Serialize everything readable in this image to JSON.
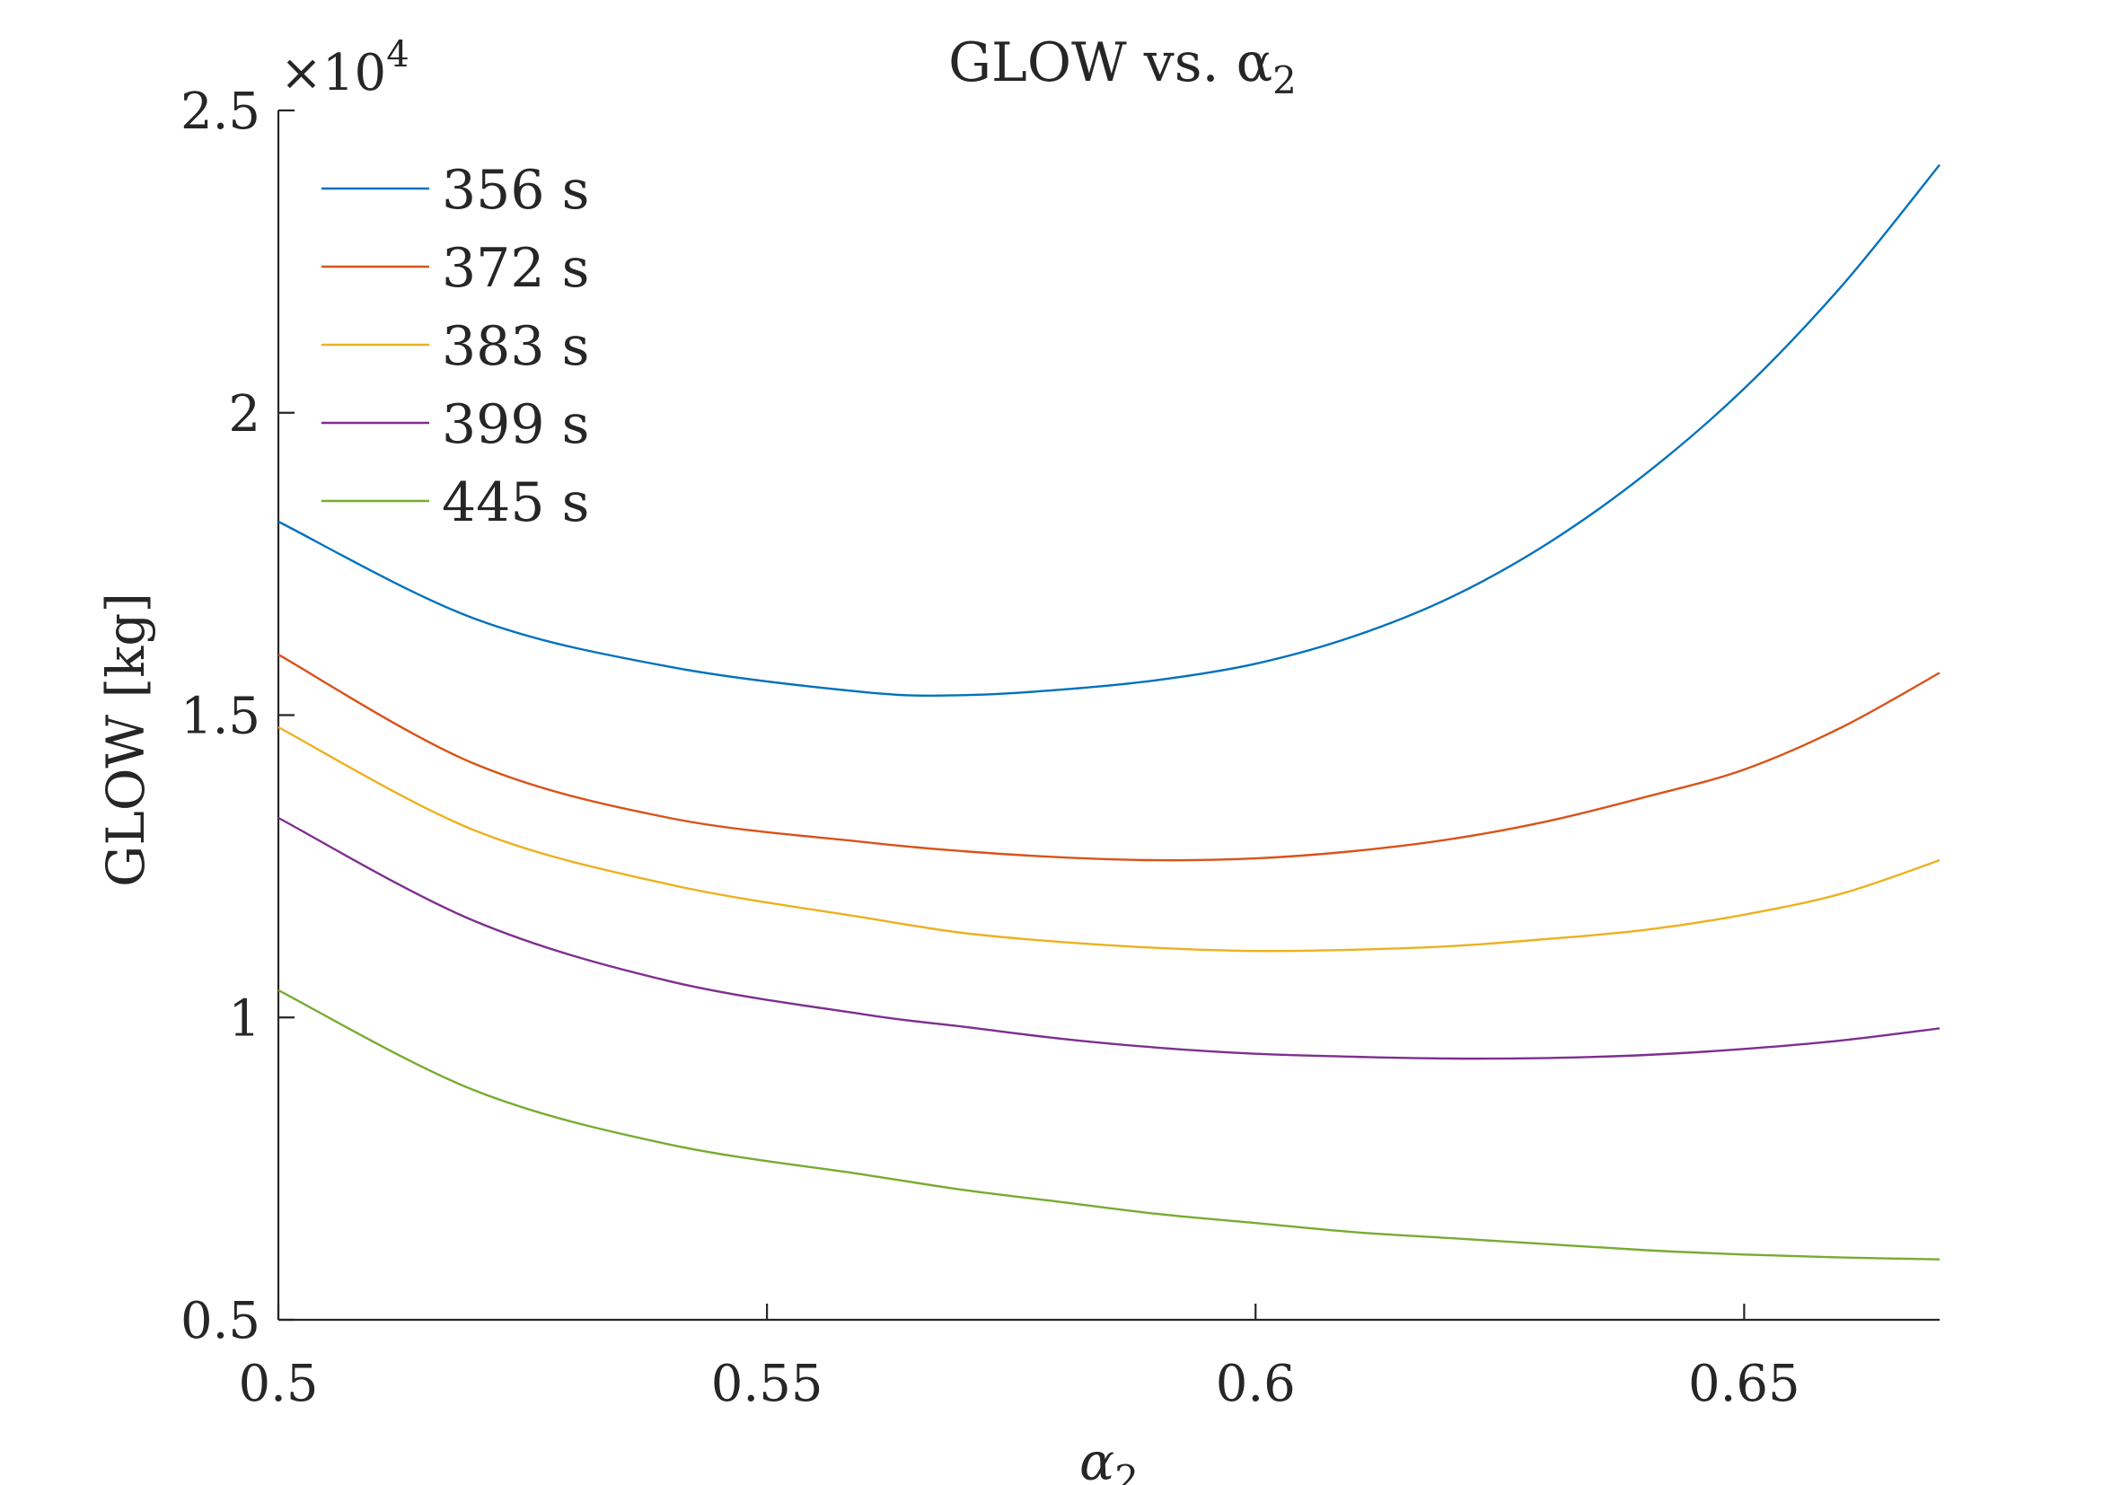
{
  "chart_data": {
    "type": "line",
    "title": "GLOW vs. α",
    "title_subscript": "2",
    "xlabel": "α",
    "xlabel_subscript": "2",
    "ylabel": "GLOW [kg]",
    "y_exponent_label": "×10",
    "y_exponent_power": "4",
    "xlim": [
      0.5,
      0.67
    ],
    "ylim": [
      5000,
      25000
    ],
    "x_ticks": [
      0.5,
      0.55,
      0.6,
      0.65
    ],
    "x_tick_labels": [
      "0.5",
      "0.55",
      "0.6",
      "0.65"
    ],
    "y_ticks": [
      5000,
      10000,
      15000,
      20000,
      25000
    ],
    "y_tick_labels": [
      "0.5",
      "1",
      "1.5",
      "2",
      "2.5"
    ],
    "grid": false,
    "legend_position": "top-left",
    "x": [
      0.5,
      0.52,
      0.54,
      0.56,
      0.57,
      0.58,
      0.59,
      0.6,
      0.61,
      0.62,
      0.63,
      0.64,
      0.65,
      0.66,
      0.67
    ],
    "series": [
      {
        "name": "356 s",
        "color": "#0072BD",
        "values": [
          18200,
          16600,
          15800,
          15380,
          15330,
          15420,
          15580,
          15850,
          16300,
          16950,
          17850,
          19000,
          20400,
          22100,
          24100
        ]
      },
      {
        "name": "372 s",
        "color": "#D95319",
        "values": [
          16000,
          14200,
          13300,
          12900,
          12750,
          12650,
          12600,
          12630,
          12750,
          12950,
          13250,
          13650,
          14100,
          14800,
          15700
        ]
      },
      {
        "name": "383 s",
        "color": "#EDB120",
        "values": [
          14800,
          13100,
          12200,
          11650,
          11400,
          11250,
          11150,
          11100,
          11120,
          11180,
          11300,
          11450,
          11700,
          12050,
          12600
        ]
      },
      {
        "name": "399 s",
        "color": "#7E2F8E",
        "values": [
          13300,
          11600,
          10600,
          10050,
          9850,
          9650,
          9500,
          9400,
          9350,
          9320,
          9330,
          9380,
          9480,
          9620,
          9820
        ]
      },
      {
        "name": "445 s",
        "color": "#77AC30",
        "values": [
          10450,
          8800,
          7900,
          7400,
          7150,
          6950,
          6750,
          6600,
          6450,
          6350,
          6250,
          6150,
          6080,
          6030,
          6000
        ]
      }
    ]
  }
}
